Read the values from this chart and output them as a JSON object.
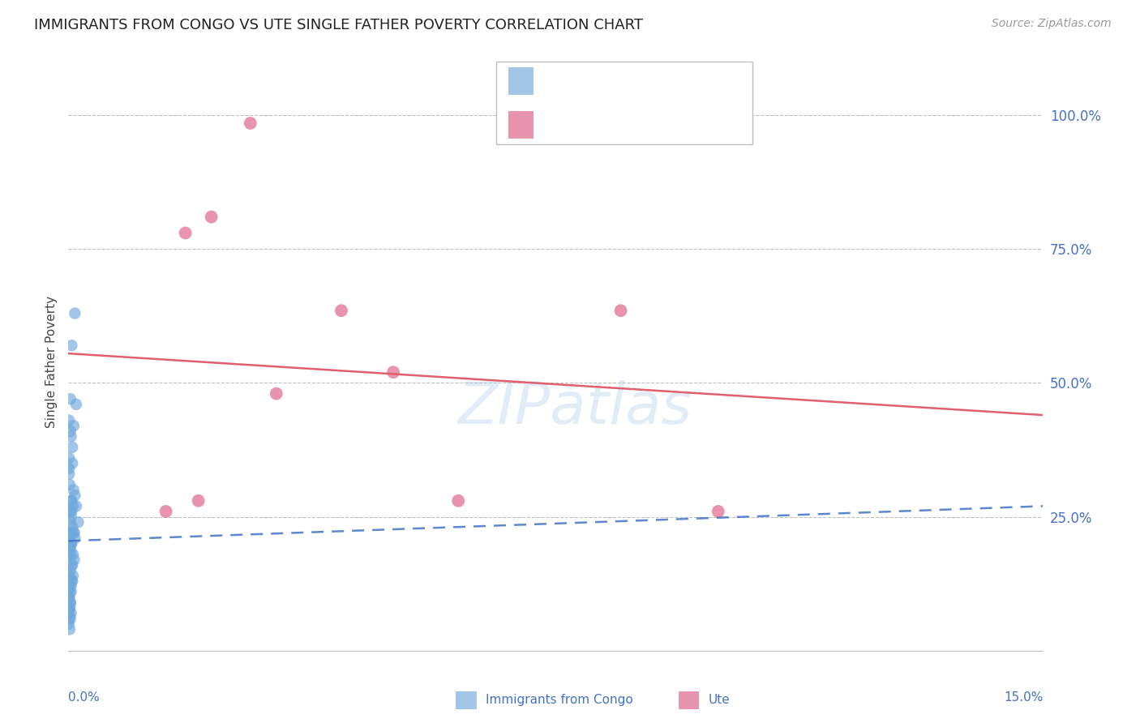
{
  "title": "IMMIGRANTS FROM CONGO VS UTE SINGLE FATHER POVERTY CORRELATION CHART",
  "source": "Source: ZipAtlas.com",
  "ylabel": "Single Father Poverty",
  "yticks": [
    0.0,
    0.25,
    0.5,
    0.75,
    1.0
  ],
  "ytick_labels": [
    "",
    "25.0%",
    "50.0%",
    "75.0%",
    "100.0%"
  ],
  "xlim": [
    0.0,
    0.15
  ],
  "ylim": [
    0.0,
    1.08
  ],
  "watermark": "ZIPatlas",
  "blue_color": "#6fa8dc",
  "pink_color": "#e07090",
  "line_blue_color": "#4472c4",
  "line_pink_color": "#e06070",
  "text_blue": "#4472c4",
  "background": "#ffffff",
  "grid_color": "#c0c0c0",
  "congo_x": [
    0.0005,
    0.001,
    0.0008,
    0.0012,
    0.0003,
    0.0006,
    0.0004,
    0.0007,
    0.0009,
    0.0005,
    0.001,
    0.0008,
    0.0006,
    0.0004,
    0.0003,
    0.0002,
    0.0001,
    0.0005,
    0.0003,
    0.0007,
    0.0009,
    0.0006,
    0.0004,
    0.0002,
    0.0001,
    0.0008,
    0.001,
    0.0012,
    0.0015,
    0.0005,
    0.0003,
    0.0007,
    0.0006,
    0.0004,
    0.0002,
    0.0001,
    0.0003,
    0.0002,
    0.0004,
    0.0001,
    0.0001,
    0.0002,
    0.0003,
    0.0001,
    0.0002,
    0.0003,
    0.0001,
    0.0004,
    0.0002,
    0.0005,
    0.0001,
    0.0002,
    0.0001,
    0.0001,
    0.0006,
    0.0004,
    0.0003,
    0.0001,
    0.0005,
    0.0003,
    0.0002,
    0.0003,
    0.0004,
    0.0005,
    0.0002
  ],
  "congo_y": [
    0.57,
    0.63,
    0.42,
    0.46,
    0.47,
    0.35,
    0.28,
    0.27,
    0.22,
    0.2,
    0.21,
    0.22,
    0.23,
    0.25,
    0.19,
    0.2,
    0.21,
    0.28,
    0.26,
    0.18,
    0.17,
    0.16,
    0.2,
    0.19,
    0.18,
    0.3,
    0.29,
    0.27,
    0.24,
    0.22,
    0.15,
    0.14,
    0.13,
    0.12,
    0.11,
    0.1,
    0.09,
    0.08,
    0.07,
    0.06,
    0.05,
    0.04,
    0.06,
    0.07,
    0.08,
    0.09,
    0.1,
    0.11,
    0.12,
    0.13,
    0.33,
    0.31,
    0.34,
    0.36,
    0.38,
    0.4,
    0.41,
    0.43,
    0.26,
    0.24,
    0.22,
    0.2,
    0.18,
    0.16,
    0.14
  ],
  "ute_x": [
    0.028,
    0.018,
    0.022,
    0.085,
    0.042,
    0.032,
    0.05,
    0.06,
    0.015,
    0.1,
    0.02
  ],
  "ute_y": [
    0.985,
    0.78,
    0.81,
    0.635,
    0.635,
    0.48,
    0.52,
    0.28,
    0.26,
    0.26,
    0.28
  ],
  "congo_trend_x": [
    0.0,
    0.15
  ],
  "congo_trend_y": [
    0.205,
    0.27
  ],
  "ute_trend_x": [
    0.0,
    0.15
  ],
  "ute_trend_y": [
    0.555,
    0.44
  ]
}
